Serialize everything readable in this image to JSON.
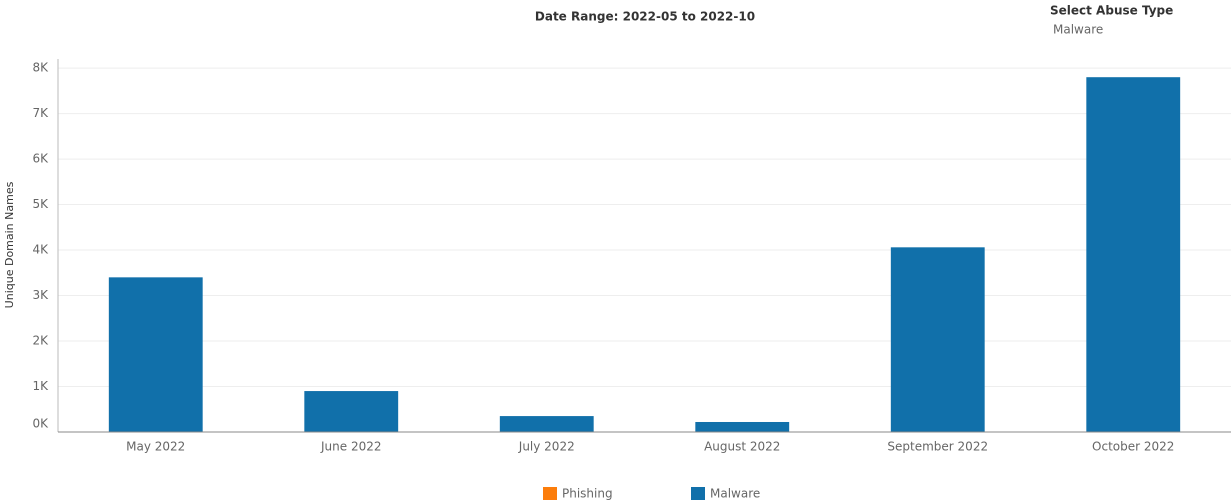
{
  "chart_data": {
    "type": "bar",
    "title": "Date Range: 2022-05 to 2022-10",
    "filter_label": "Select Abuse Type",
    "filter_value": "Malware",
    "ylabel": "Unique Domain Names",
    "categories": [
      "May 2022",
      "June 2022",
      "July 2022",
      "August 2022",
      "September 2022",
      "October 2022"
    ],
    "series": [
      {
        "name": "Malware",
        "color": "#1170aa",
        "values": [
          3400,
          900,
          350,
          220,
          4060,
          7800
        ]
      }
    ],
    "legend": [
      {
        "name": "Phishing",
        "color": "#fc7d0b"
      },
      {
        "name": "Malware",
        "color": "#1170aa"
      }
    ],
    "ylim": [
      0,
      8200
    ],
    "yticks": [
      {
        "value": 0,
        "label": "0K"
      },
      {
        "value": 1000,
        "label": "1K"
      },
      {
        "value": 2000,
        "label": "2K"
      },
      {
        "value": 3000,
        "label": "3K"
      },
      {
        "value": 4000,
        "label": "4K"
      },
      {
        "value": 5000,
        "label": "5K"
      },
      {
        "value": 6000,
        "label": "6K"
      },
      {
        "value": 7000,
        "label": "7K"
      },
      {
        "value": 8000,
        "label": "8K"
      }
    ],
    "grid": true
  }
}
